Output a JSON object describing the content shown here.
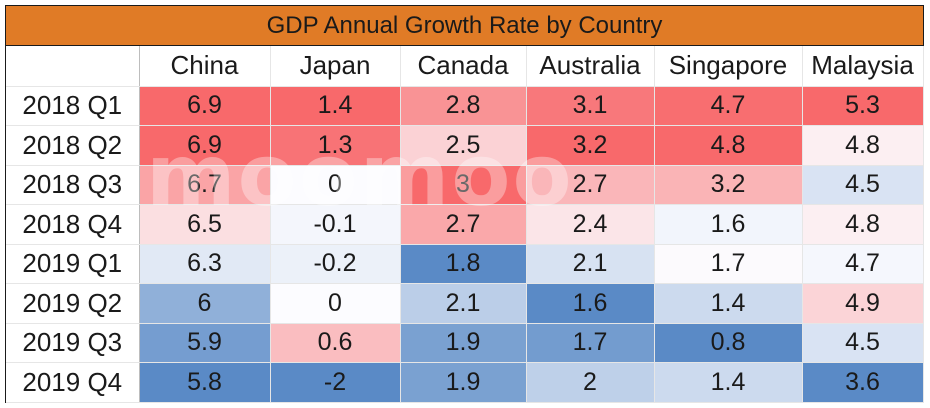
{
  "chart_data": {
    "type": "heatmap",
    "title": "GDP Annual Growth Rate by Country",
    "columns": [
      "China",
      "Japan",
      "Canada",
      "Australia",
      "Singapore",
      "Malaysia"
    ],
    "rows": [
      "2018 Q1",
      "2018 Q2",
      "2018 Q3",
      "2018 Q4",
      "2019 Q1",
      "2019 Q2",
      "2019 Q3",
      "2019 Q4"
    ],
    "values": [
      [
        "6.9",
        "1.4",
        "2.8",
        "3.1",
        "4.7",
        "5.3"
      ],
      [
        "6.9",
        "1.3",
        "2.5",
        "3.2",
        "4.8",
        "4.8"
      ],
      [
        "6.7",
        "0",
        "3",
        "2.7",
        "3.2",
        "4.5"
      ],
      [
        "6.5",
        "-0.1",
        "2.7",
        "2.4",
        "1.6",
        "4.8"
      ],
      [
        "6.3",
        "-0.2",
        "1.8",
        "2.1",
        "1.7",
        "4.7"
      ],
      [
        "6",
        "0",
        "2.1",
        "1.6",
        "1.4",
        "4.9"
      ],
      [
        "5.9",
        "0.6",
        "1.9",
        "1.7",
        "0.8",
        "4.5"
      ],
      [
        "5.8",
        "-2",
        "1.9",
        "2",
        "1.4",
        "3.6"
      ]
    ],
    "color_scale": {
      "low": "#5a8ac6",
      "mid": "#fcfcff",
      "high": "#f8696b"
    }
  },
  "watermark": "moomoo",
  "colors": {
    "title_bg": "#e07b26"
  }
}
